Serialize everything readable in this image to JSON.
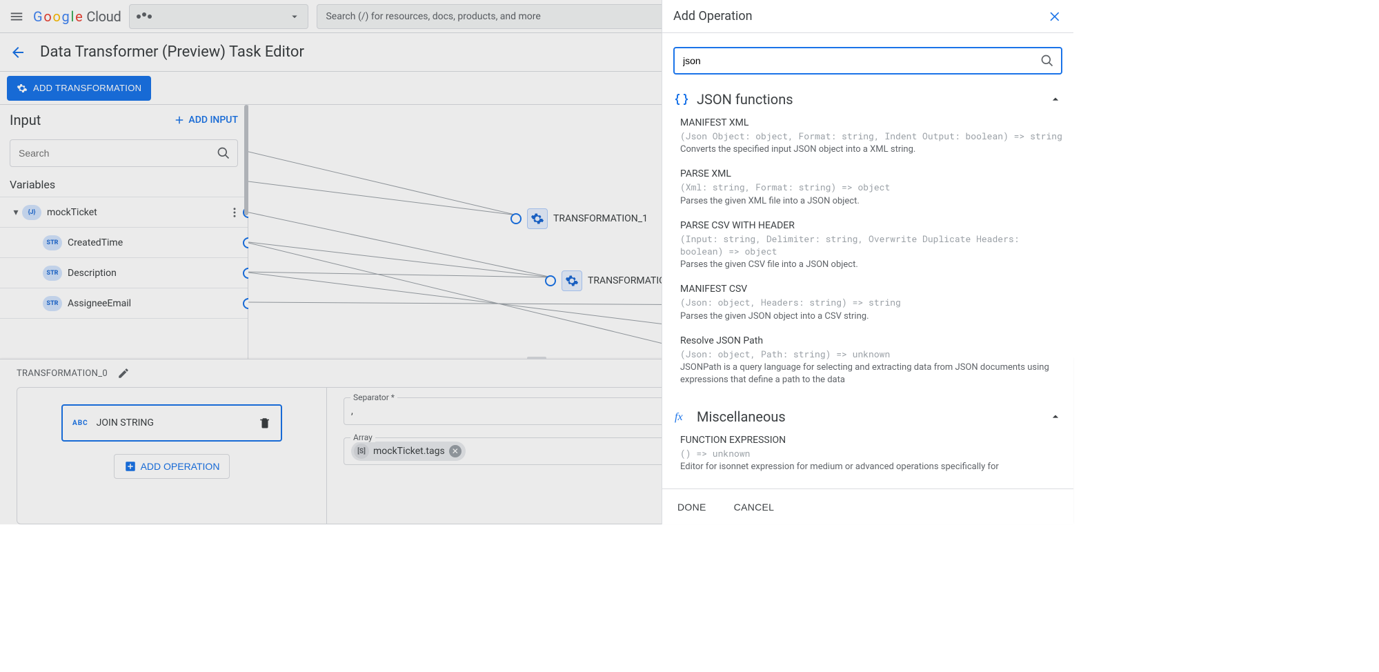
{
  "colors": {
    "primary": "#1a73e8",
    "border": "#dadce0",
    "text": "#3c4043",
    "muted": "#5f6368",
    "code": "#9aa0a6",
    "pill_bg": "#d2e3fc",
    "pill_fg": "#1967d2"
  },
  "topbar": {
    "logo_cloud": "Cloud",
    "search_placeholder": "Search (/) for resources, docs, products, and more"
  },
  "page": {
    "title": "Data Transformer (Preview) Task Editor",
    "add_transformation_label": "ADD TRANSFORMATION"
  },
  "left_panel": {
    "title": "Input",
    "add_input_label": "ADD INPUT",
    "search_placeholder": "Search",
    "variables_label": "Variables",
    "root_var": {
      "type": "{J}",
      "name": "mockTicket"
    },
    "children": [
      {
        "type": "STR",
        "name": "CreatedTime"
      },
      {
        "type": "STR",
        "name": "Description"
      },
      {
        "type": "STR",
        "name": "AssigneeEmail"
      }
    ]
  },
  "canvas_nodes": {
    "t1": "TRANSFORMATION_1",
    "t2": "TRANSFORMATIO"
  },
  "bottom": {
    "title": "TRANSFORMATION_0",
    "op_type": "ABC",
    "op_name": "JOIN STRING",
    "add_op_label": "ADD OPERATION",
    "separator_label": "Separator *",
    "separator_value": ",",
    "array_label": "Array",
    "array_chip_type": "[S]",
    "array_chip_text": "mockTicket.tags"
  },
  "drawer": {
    "title": "Add Operation",
    "search_value": "json",
    "groups": [
      {
        "icon": "braces",
        "title": "JSON functions",
        "funcs": [
          {
            "name": "MANIFEST XML",
            "sig": "(Json Object: object, Format: string, Indent Output: boolean) => string",
            "desc": "Converts the specified input JSON object into a XML string."
          },
          {
            "name": "PARSE XML",
            "sig": "(Xml: string, Format: string) => object",
            "desc": "Parses the given XML file into a JSON object."
          },
          {
            "name": "PARSE CSV WITH HEADER",
            "sig": "(Input: string, Delimiter: string, Overwrite Duplicate Headers: boolean) => object",
            "desc": "Parses the given CSV file into a JSON object."
          },
          {
            "name": "MANIFEST CSV",
            "sig": "(Json: object, Headers: string) => string",
            "desc": "Parses the given JSON object into a CSV string."
          },
          {
            "name": "Resolve JSON Path",
            "sig": "(Json: object, Path: string) => unknown",
            "desc": "JSONPath is a query language for selecting and extracting data from JSON documents using expressions that define a path to the data"
          }
        ]
      },
      {
        "icon": "fx",
        "title": "Miscellaneous",
        "funcs": [
          {
            "name": "FUNCTION EXPRESSION",
            "sig": "() => unknown",
            "desc": "Editor for isonnet expression for medium or advanced operations specifically for"
          }
        ]
      }
    ],
    "done_label": "DONE",
    "cancel_label": "CANCEL"
  }
}
